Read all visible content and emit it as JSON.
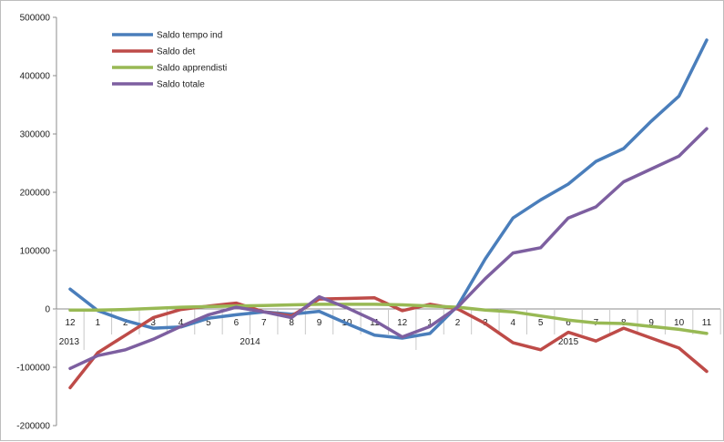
{
  "chart_data": {
    "type": "line",
    "title": "",
    "xlabel": "",
    "ylabel": "",
    "ylim": [
      -200000,
      500000
    ],
    "yticks": [
      -200000,
      -100000,
      0,
      100000,
      200000,
      300000,
      400000,
      500000
    ],
    "grid": false,
    "legend_position": "top-left",
    "categories": [
      "12",
      "1",
      "2",
      "3",
      "4",
      "5",
      "6",
      "7",
      "8",
      "9",
      "10",
      "11",
      "12",
      "1",
      "2",
      "3",
      "4",
      "5",
      "6",
      "7",
      "8",
      "9",
      "10",
      "11"
    ],
    "year_groups": [
      {
        "label": "2013",
        "count": 1
      },
      {
        "label": "2014",
        "count": 12
      },
      {
        "label": "2015",
        "count": 11
      }
    ],
    "series": [
      {
        "name": "Saldo tempo ind",
        "color": "#4a7ebb",
        "values": [
          34000,
          -3000,
          -20000,
          -33000,
          -31000,
          -16000,
          -10000,
          -5000,
          -9000,
          -4000,
          -25000,
          -45000,
          -50000,
          -42000,
          5000,
          86000,
          156000,
          187000,
          214000,
          253000,
          275000,
          322000,
          365000,
          461000
        ]
      },
      {
        "name": "Saldo det",
        "color": "#be4b48",
        "values": [
          -135000,
          -75000,
          -45000,
          -15000,
          -1000,
          5000,
          10000,
          -5000,
          -12000,
          17000,
          18000,
          19000,
          -3000,
          8000,
          0,
          -25000,
          -58000,
          -70000,
          -40000,
          -55000,
          -33000,
          -50000,
          -67000,
          -107000
        ]
      },
      {
        "name": "Saldo apprendisti",
        "color": "#98b954",
        "values": [
          -2000,
          -2000,
          -1000,
          1000,
          3000,
          4000,
          5000,
          6000,
          7000,
          8000,
          8000,
          8000,
          7000,
          5000,
          3000,
          -2000,
          -5000,
          -12000,
          -19000,
          -24000,
          -25000,
          -30000,
          -35000,
          -42000
        ]
      },
      {
        "name": "Saldo totale",
        "color": "#7d5fa0",
        "values": [
          -102000,
          -80000,
          -70000,
          -52000,
          -30000,
          -10000,
          3000,
          -5000,
          -15000,
          21000,
          2000,
          -20000,
          -48000,
          -30000,
          3000,
          52000,
          96000,
          105000,
          156000,
          175000,
          218000,
          240000,
          262000,
          309000
        ]
      }
    ]
  }
}
